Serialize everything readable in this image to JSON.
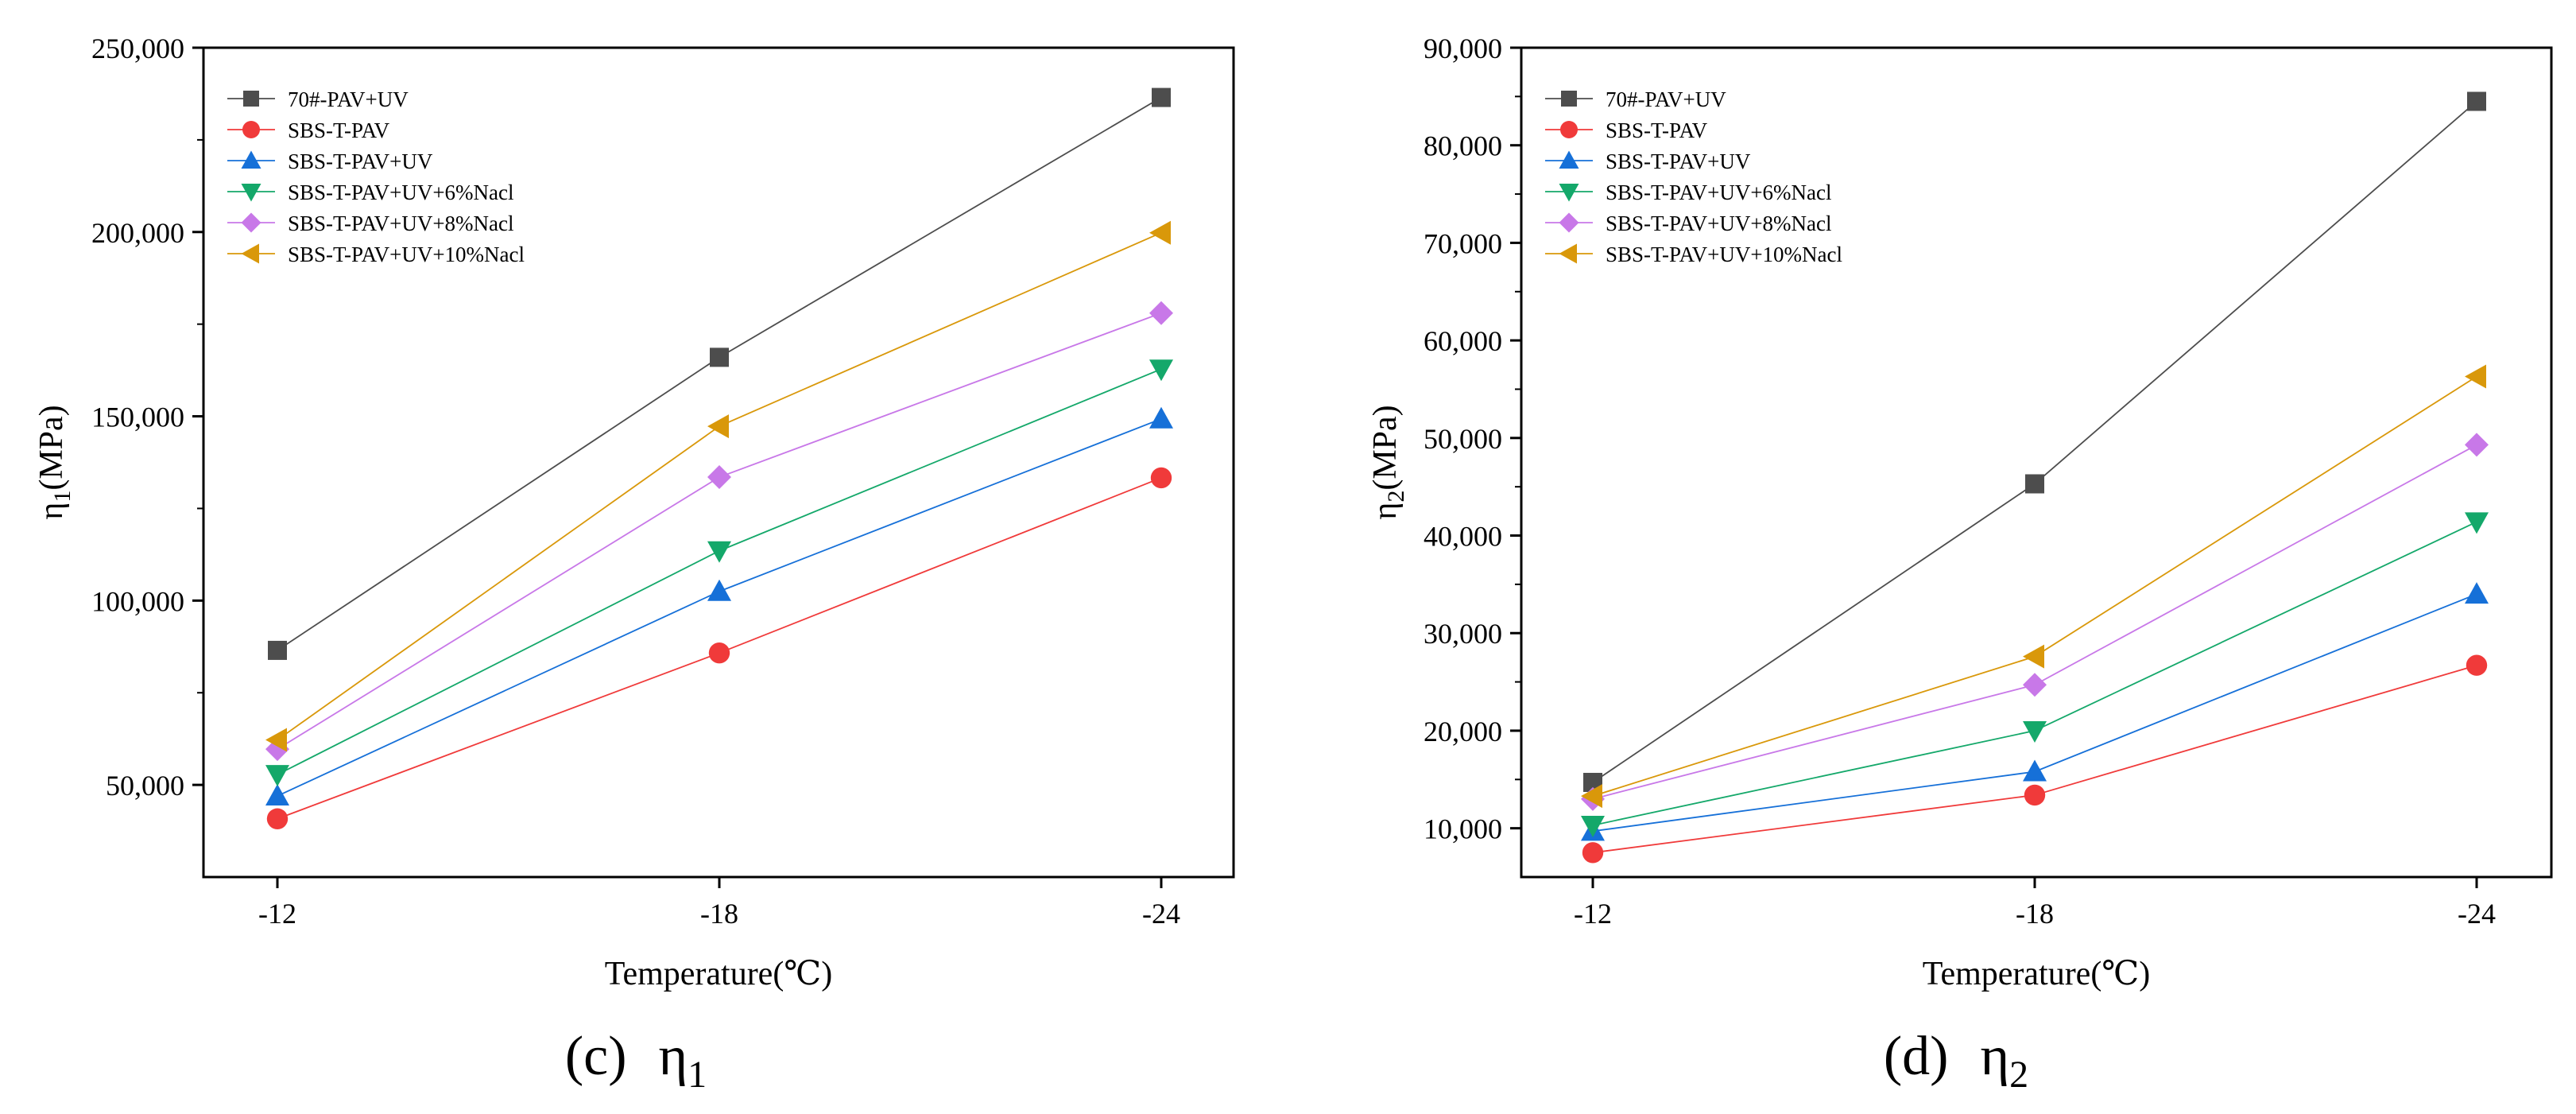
{
  "series_styles": [
    {
      "name": "70#-PAV+UV",
      "color": "#4d4d4d",
      "marker": "square"
    },
    {
      "name": "SBS-T-PAV",
      "color": "#f03a3a",
      "marker": "circle"
    },
    {
      "name": "SBS-T-PAV+UV",
      "color": "#1670d8",
      "marker": "triangle-up"
    },
    {
      "name": "SBS-T-PAV+UV+6%Nacl",
      "color": "#14a86a",
      "marker": "triangle-down"
    },
    {
      "name": "SBS-T-PAV+UV+8%Nacl",
      "color": "#c878e8",
      "marker": "diamond"
    },
    {
      "name": "SBS-T-PAV+UV+10%Nacl",
      "color": "#d9980a",
      "marker": "triangle-left"
    }
  ],
  "chart_data": [
    {
      "type": "line",
      "caption": {
        "letter": "(c)",
        "symbol": "η",
        "subscript": "1"
      },
      "title": "",
      "xlabel": "Temperature(℃)",
      "ylabel": {
        "prefix": "η",
        "subscript": "1",
        "suffix": "(MPa)"
      },
      "categories": [
        "-12",
        "-18",
        "-24"
      ],
      "ylim": [
        25000,
        250000
      ],
      "yticks": [
        50000,
        100000,
        150000,
        200000,
        250000
      ],
      "ytick_labels": [
        "50,000",
        "100,000",
        "150,000",
        "200,000",
        "250,000"
      ],
      "legend_position": "top-left",
      "grid": false,
      "series": [
        {
          "name": "70#-PAV+UV",
          "values": [
            86500,
            166000,
            236500
          ]
        },
        {
          "name": "SBS-T-PAV",
          "values": [
            40800,
            85800,
            133300
          ]
        },
        {
          "name": "SBS-T-PAV+UV",
          "values": [
            47000,
            102500,
            149300
          ]
        },
        {
          "name": "SBS-T-PAV+UV+6%Nacl",
          "values": [
            52800,
            113500,
            162800
          ]
        },
        {
          "name": "SBS-T-PAV+UV+8%Nacl",
          "values": [
            59700,
            133500,
            178000
          ]
        },
        {
          "name": "SBS-T-PAV+UV+10%Nacl",
          "values": [
            62200,
            147300,
            199800
          ]
        }
      ]
    },
    {
      "type": "line",
      "caption": {
        "letter": "(d)",
        "symbol": "η",
        "subscript": "2"
      },
      "title": "",
      "xlabel": "Temperature(℃)",
      "ylabel": {
        "prefix": "η",
        "subscript": "2",
        "suffix": "(MPa)"
      },
      "categories": [
        "-12",
        "-18",
        "-24"
      ],
      "ylim": [
        5000,
        90000
      ],
      "yticks": [
        10000,
        20000,
        30000,
        40000,
        50000,
        60000,
        70000,
        80000,
        90000
      ],
      "ytick_labels": [
        "10,000",
        "20,000",
        "30,000",
        "40,000",
        "50,000",
        "60,000",
        "70,000",
        "80,000",
        "90,000"
      ],
      "legend_position": "top-left",
      "grid": false,
      "series": [
        {
          "name": "70#-PAV+UV",
          "values": [
            14700,
            45300,
            84500
          ]
        },
        {
          "name": "SBS-T-PAV",
          "values": [
            7500,
            13400,
            26700
          ]
        },
        {
          "name": "SBS-T-PAV+UV",
          "values": [
            9700,
            15800,
            34000
          ]
        },
        {
          "name": "SBS-T-PAV+UV+6%Nacl",
          "values": [
            10300,
            20000,
            41400
          ]
        },
        {
          "name": "SBS-T-PAV+UV+8%Nacl",
          "values": [
            13000,
            24700,
            49300
          ]
        },
        {
          "name": "SBS-T-PAV+UV+10%Nacl",
          "values": [
            13300,
            27600,
            56300
          ]
        }
      ]
    }
  ]
}
